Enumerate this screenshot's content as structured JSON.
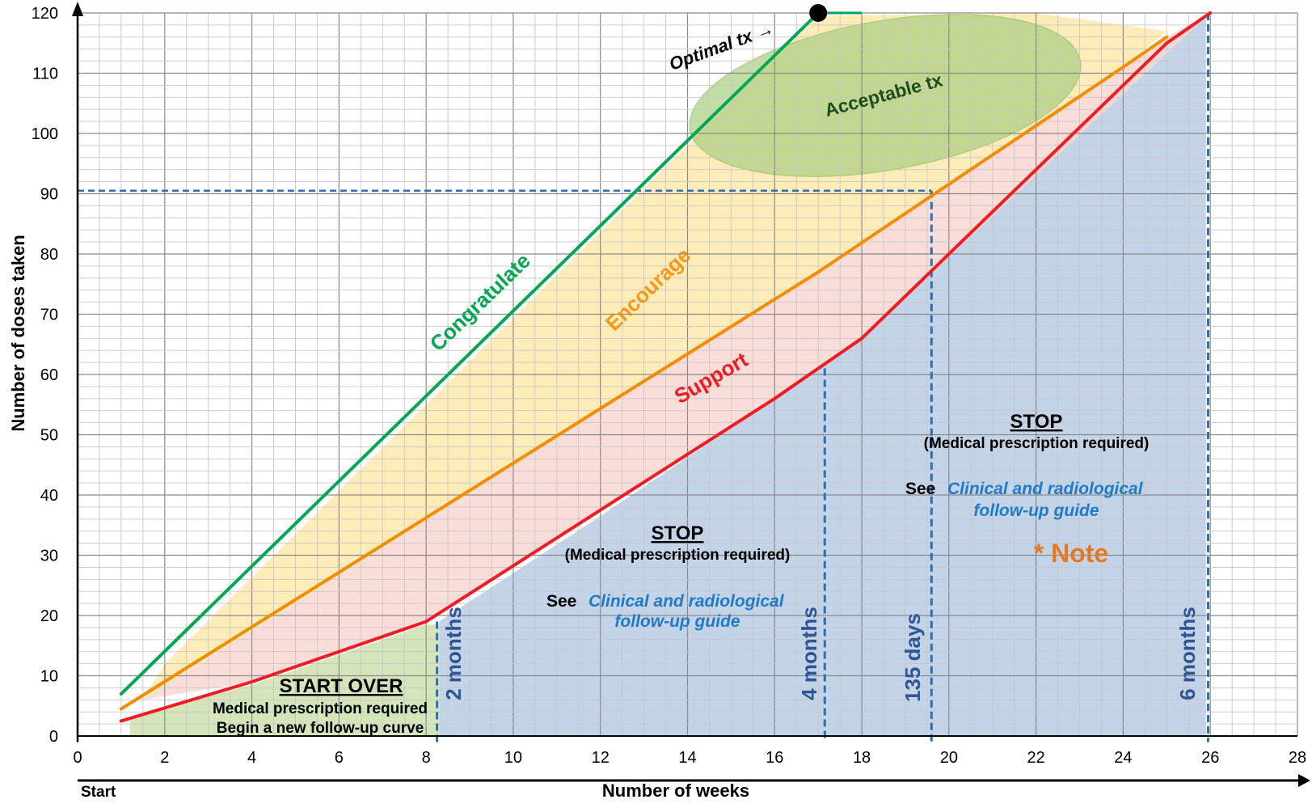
{
  "chart_data": {
    "type": "line",
    "xlabel": "Number of weeks",
    "ylabel": "Number of doses taken",
    "start_label": "Start",
    "xlim": [
      0,
      28
    ],
    "ylim": [
      0,
      120
    ],
    "x_ticks": [
      0,
      2,
      4,
      6,
      8,
      10,
      12,
      14,
      16,
      18,
      20,
      22,
      24,
      26,
      28
    ],
    "y_ticks": [
      0,
      10,
      20,
      30,
      40,
      50,
      60,
      70,
      80,
      90,
      100,
      110,
      120
    ],
    "minor_grid_weeks": 0.5,
    "minor_grid_doses": 2,
    "grid": true,
    "series": [
      {
        "name": "Congratulate",
        "color": "#00a651",
        "x": [
          1,
          17
        ],
        "y": [
          7,
          120
        ]
      },
      {
        "name": "Encourage",
        "color": "#f28c00",
        "x": [
          1,
          17,
          24,
          25
        ],
        "y": [
          4.5,
          77,
          111,
          116
        ]
      },
      {
        "name": "Support",
        "color": "#ee1c25",
        "x": [
          1,
          4,
          8,
          16,
          18,
          25,
          26
        ],
        "y": [
          2.5,
          9,
          19,
          56,
          66,
          115,
          120
        ]
      }
    ],
    "optimal_marker": {
      "label": "Optimal tx →",
      "x": 17,
      "y": 120
    },
    "ellipse_label": "Acceptable tx",
    "reference_lines": {
      "horizontal_y": 90.5,
      "verticals": [
        {
          "x": 8.25,
          "label": "2 months"
        },
        {
          "x": 17.15,
          "label": "4 months"
        },
        {
          "x": 19.6,
          "label": "135 days"
        },
        {
          "x": 25.95,
          "label": "6 months"
        }
      ]
    },
    "regions": {
      "start_over": {
        "title": "START OVER",
        "line1": "Medical prescription required",
        "line2": "Begin a new follow-up curve"
      },
      "stop_middle": {
        "title": "STOP",
        "subtitle": "(Medical prescription required)",
        "see": "See",
        "link_line1": "Clinical and radiological",
        "link_line2": "follow-up guide"
      },
      "stop_right": {
        "title": "STOP",
        "subtitle": "(Medical prescription required)",
        "see": "See",
        "link_line1": "Clinical and radiological",
        "link_line2": "follow-up guide",
        "note": "* Note"
      }
    },
    "colors": {
      "green_line": "#00a651",
      "orange_line": "#f28c00",
      "red_line": "#ee1c25",
      "blue_dashed": "#2f6db5",
      "link_blue": "#1f7ac8",
      "note_orange": "#e87722",
      "yellow_band": "#fde7a6",
      "pink_band": "#f9d7d2",
      "blue_region": "#b8cce4",
      "green_region": "#c6dca3",
      "ellipse_fill": "#a9cf7e"
    }
  }
}
